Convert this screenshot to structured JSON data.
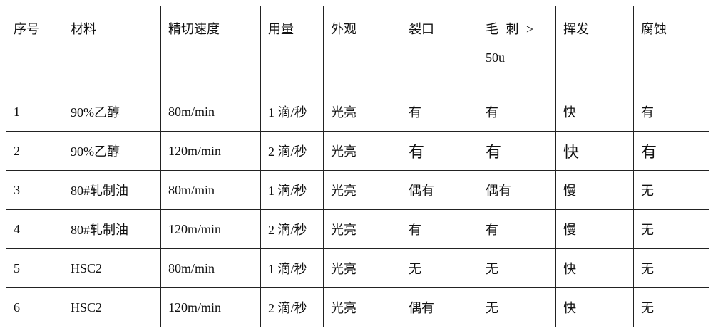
{
  "headers": [
    "序号",
    "材料",
    "精切速度",
    "用量",
    "外观",
    "裂口",
    "毛 刺 >",
    "挥发",
    "腐蚀"
  ],
  "header_burr_line2": "50u",
  "rows": [
    [
      "1",
      "90%乙醇",
      "80m/min",
      "1 滴/秒",
      "光亮",
      "有",
      "有",
      "快",
      "有"
    ],
    [
      "2",
      "90%乙醇",
      "120m/min",
      "2 滴/秒",
      "光亮",
      "有",
      "有",
      "快",
      "有"
    ],
    [
      "3",
      "80#轧制油",
      "80m/min",
      "1 滴/秒",
      "光亮",
      "偶有",
      "偶有",
      "慢",
      "无"
    ],
    [
      "4",
      "80#轧制油",
      "120m/min",
      "2 滴/秒",
      "光亮",
      "有",
      "有",
      "慢",
      "无"
    ],
    [
      "5",
      "HSC2",
      "80m/min",
      "1 滴/秒",
      "光亮",
      "无",
      "无",
      "快",
      "无"
    ],
    [
      "6",
      "HSC2",
      "120m/min",
      "2 滴/秒",
      "光亮",
      "偶有",
      "无",
      "快",
      "无"
    ]
  ]
}
